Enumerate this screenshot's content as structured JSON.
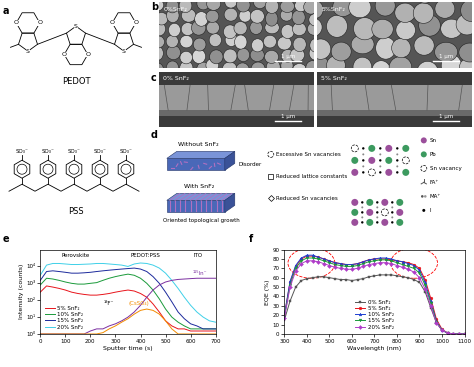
{
  "panels": {
    "a": {
      "label": "a",
      "structures": [
        {
          "name": "PEDOT",
          "atoms": [
            "O",
            "S"
          ]
        },
        {
          "name": "PSS",
          "group": "SO₃⁻"
        }
      ]
    },
    "b": {
      "label": "b",
      "images": [
        "0%SnF₂",
        "5%SnF₂"
      ],
      "scale_bar": "1 μm"
    },
    "c": {
      "label": "c",
      "images": [
        "0% SnF₂",
        "5% SnF₂"
      ],
      "scale_bar": "1 μm"
    },
    "d": {
      "label": "d",
      "films": [
        {
          "title": "Without SnF₂",
          "growth": "Disorder"
        },
        {
          "title": "With SnF₂",
          "growth": "Oriented topological growth"
        }
      ],
      "features": [
        "Excessive Sn vacancies",
        "Reduced lattice constants",
        "Reduced Sn vacancies"
      ],
      "species": [
        "Sn",
        "Pb",
        "Sn vacancy",
        "FA⁺",
        "MA⁺",
        "I"
      ]
    }
  },
  "chart_data": [
    {
      "panel": "e",
      "type": "line",
      "x_label": "Sputter time (s)",
      "y_label": "Intensity (counts)",
      "log": "y",
      "xlim": [
        0,
        700
      ],
      "xticks": [
        0,
        100,
        200,
        300,
        400,
        500,
        600,
        700
      ],
      "ylim": [
        1,
        100000
      ],
      "yticks": [
        {
          "value": 1,
          "label": "10⁰"
        },
        {
          "value": 10,
          "label": "10¹"
        },
        {
          "value": 100,
          "label": "10²"
        },
        {
          "value": 1000,
          "label": "10³"
        },
        {
          "value": 10000,
          "label": "10⁴"
        }
      ],
      "legend": "lower left",
      "x": [
        0,
        25,
        50,
        75,
        100,
        125,
        150,
        175,
        200,
        225,
        250,
        275,
        300,
        325,
        350,
        375,
        400,
        425,
        450,
        475,
        500,
        525,
        550,
        575,
        600,
        625,
        650,
        675,
        700
      ],
      "series": [
        {
          "name": "5% SnF₂",
          "color": "#e8141b",
          "values": [
            300,
            700,
            600,
            500,
            400,
            300,
            250,
            220,
            200,
            200,
            220,
            250,
            300,
            350,
            400,
            350,
            250,
            150,
            60,
            20,
            6,
            3,
            2,
            2,
            1.5,
            1.5,
            1.5,
            1.5,
            1.5
          ]
        },
        {
          "name": "10% SnF₂",
          "color": "#1a9a3a",
          "values": [
            800,
            2000,
            1800,
            1500,
            1200,
            1000,
            900,
            900,
            1000,
            1100,
            1500,
            2000,
            2500,
            3000,
            3500,
            3000,
            2000,
            1000,
            400,
            120,
            30,
            10,
            5,
            3,
            2,
            2,
            2,
            2,
            2
          ]
        },
        {
          "name": "15% SnF₂",
          "color": "#1c2a9c",
          "values": [
            1500,
            5000,
            5500,
            5000,
            4500,
            4000,
            4000,
            4200,
            4500,
            5000,
            5500,
            6000,
            6500,
            7000,
            7500,
            8000,
            7000,
            5000,
            2500,
            1000,
            300,
            80,
            20,
            8,
            4,
            3,
            2,
            2,
            2
          ]
        },
        {
          "name": "20% SnF₂",
          "color": "#3fd0e8",
          "values": [
            3000,
            12000,
            15000,
            15000,
            14000,
            13000,
            13000,
            13500,
            14000,
            15000,
            15000,
            14000,
            13000,
            12000,
            10000,
            14000,
            16000,
            15000,
            12000,
            8000,
            4000,
            1500,
            500,
            150,
            50,
            20,
            10,
            6,
            5
          ]
        }
      ],
      "labeled_curves": [
        {
          "name": "¹¹⁵In⁻",
          "color": "#7b2fa0",
          "values": [
            1,
            1,
            1,
            1,
            1,
            1,
            1,
            1,
            1.5,
            2,
            2,
            3,
            4,
            6,
            10,
            20,
            50,
            150,
            400,
            800,
            1200,
            1500,
            1700,
            1800,
            1900,
            2000,
            2000,
            2000,
            2000
          ]
        },
        {
          "name": "(CsSO₄)⁻",
          "color": "#f28c00",
          "values": [
            1,
            1,
            1,
            1,
            1,
            1,
            1,
            1,
            1,
            1,
            1.2,
            2,
            3,
            5,
            8,
            15,
            25,
            30,
            25,
            15,
            6,
            2,
            1,
            1,
            1,
            1,
            1,
            1,
            1
          ]
        }
      ],
      "annotations": [
        "Perovskite",
        "PEDOT:PSS",
        "ITO",
        "¹⁹F⁻"
      ]
    },
    {
      "panel": "f",
      "type": "line",
      "x_label": "Wavelength (nm)",
      "y_label": "EQE (%)",
      "xlim": [
        300,
        1100
      ],
      "xticks": [
        300,
        400,
        500,
        600,
        700,
        800,
        900,
        1000,
        1100
      ],
      "ylim": [
        0,
        90
      ],
      "yticks": [
        0,
        10,
        20,
        30,
        40,
        50,
        60,
        70,
        80,
        90
      ],
      "legend": "lower center",
      "x": [
        300,
        325,
        350,
        375,
        400,
        425,
        450,
        475,
        500,
        525,
        550,
        575,
        600,
        625,
        650,
        675,
        700,
        725,
        750,
        775,
        800,
        825,
        850,
        875,
        900,
        925,
        950,
        975,
        1000,
        1025,
        1050,
        1075,
        1100
      ],
      "series": [
        {
          "name": "0% SnF₂",
          "color": "#555555",
          "marker": "square",
          "values": [
            15,
            35,
            50,
            57,
            59,
            60,
            61,
            61,
            60,
            59,
            58,
            58,
            57,
            58,
            59,
            61,
            62,
            63,
            63,
            63,
            62,
            61,
            60,
            58,
            55,
            45,
            28,
            12,
            4,
            1,
            0,
            0,
            0
          ]
        },
        {
          "name": "5% SnF₂",
          "color": "#e8141b",
          "marker": "circle",
          "values": [
            20,
            55,
            72,
            80,
            83,
            83,
            82,
            80,
            78,
            76,
            75,
            74,
            74,
            75,
            77,
            79,
            80,
            80,
            80,
            79,
            78,
            77,
            76,
            74,
            70,
            58,
            38,
            16,
            5,
            1,
            0,
            0,
            0
          ]
        },
        {
          "name": "10% SnF₂",
          "color": "#1f3fd1",
          "marker": "triangle_up",
          "values": [
            20,
            56,
            73,
            81,
            84,
            84,
            82,
            80,
            78,
            76,
            75,
            74,
            74,
            75,
            77,
            79,
            80,
            81,
            81,
            80,
            78,
            77,
            75,
            73,
            68,
            55,
            35,
            14,
            4,
            1,
            0,
            0,
            0
          ]
        },
        {
          "name": "15% SnF₂",
          "color": "#1a9a3a",
          "marker": "triangle_down",
          "values": [
            18,
            52,
            70,
            78,
            81,
            81,
            80,
            78,
            76,
            74,
            73,
            72,
            72,
            73,
            75,
            77,
            78,
            79,
            79,
            78,
            76,
            74,
            72,
            70,
            65,
            52,
            33,
            13,
            4,
            1,
            0,
            0,
            0
          ]
        },
        {
          "name": "20% SnF₂",
          "color": "#b03cc8",
          "marker": "diamond",
          "values": [
            17,
            50,
            67,
            75,
            78,
            78,
            77,
            75,
            73,
            71,
            70,
            69,
            69,
            70,
            72,
            74,
            75,
            76,
            76,
            75,
            73,
            71,
            69,
            66,
            60,
            48,
            30,
            12,
            4,
            1,
            0,
            0,
            0
          ]
        }
      ]
    }
  ]
}
